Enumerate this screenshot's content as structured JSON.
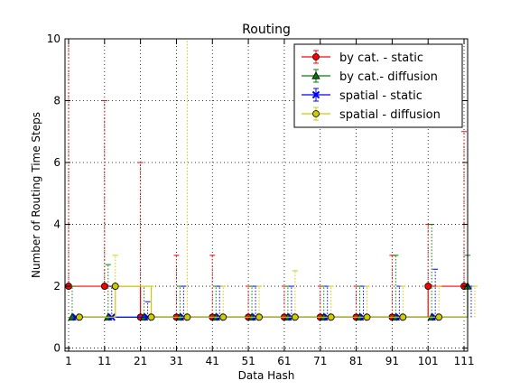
{
  "chart_data": {
    "type": "line",
    "title": "Routing",
    "xlabel": "Data Hash",
    "ylabel": "Number of Routing Time Steps",
    "xlim": [
      0,
      112
    ],
    "ylim": [
      -0.1,
      10
    ],
    "x_ticks": [
      1,
      11,
      21,
      31,
      41,
      51,
      61,
      71,
      81,
      91,
      101,
      111
    ],
    "y_ticks": [
      0,
      2,
      4,
      6,
      8,
      10
    ],
    "grid": true,
    "legend_position": "top-right",
    "series": [
      {
        "name": "by cat. - static",
        "color": "#ff0000",
        "marker": "circle",
        "x": [
          1,
          11,
          21,
          31,
          41,
          51,
          61,
          71,
          81,
          91,
          101,
          111
        ],
        "values": [
          2,
          2,
          1,
          1,
          1,
          1,
          1,
          1,
          1,
          1,
          2,
          2
        ],
        "err_hi": [
          10,
          8,
          6,
          3,
          3,
          2,
          2,
          2,
          2,
          3,
          4,
          7
        ]
      },
      {
        "name": "by cat.- diffusion",
        "color": "#008000",
        "marker": "triangle",
        "x": [
          2,
          12,
          22,
          32,
          42,
          52,
          62,
          72,
          82,
          92,
          102,
          112
        ],
        "values": [
          1,
          1,
          1,
          1,
          1,
          1,
          1,
          1,
          1,
          1,
          1,
          2
        ],
        "err_hi": [
          2,
          2.7,
          2,
          2,
          2,
          2,
          2,
          2,
          2,
          3,
          4,
          3
        ]
      },
      {
        "name": "spatial - static",
        "color": "#0000ff",
        "marker": "x",
        "x": [
          3,
          13,
          23,
          33,
          43,
          53,
          63,
          73,
          83,
          93,
          103,
          113
        ],
        "values": [
          1,
          1,
          1,
          1,
          1,
          1,
          1,
          1,
          1,
          1,
          1,
          1
        ],
        "err_hi": [
          1,
          2,
          1.5,
          2,
          2,
          2,
          2,
          2,
          2,
          2,
          2.55,
          2
        ]
      },
      {
        "name": "spatial - diffusion",
        "color": "#cccc00",
        "marker": "circle",
        "x": [
          4,
          14,
          24,
          34,
          44,
          54,
          64,
          74,
          84,
          94,
          104,
          114
        ],
        "values": [
          1,
          2,
          1,
          1,
          1,
          1,
          1,
          1,
          1,
          1,
          1,
          1
        ],
        "err_hi": [
          1,
          3,
          2,
          10,
          2,
          2,
          2.5,
          2,
          2,
          2,
          2,
          2
        ]
      }
    ]
  }
}
